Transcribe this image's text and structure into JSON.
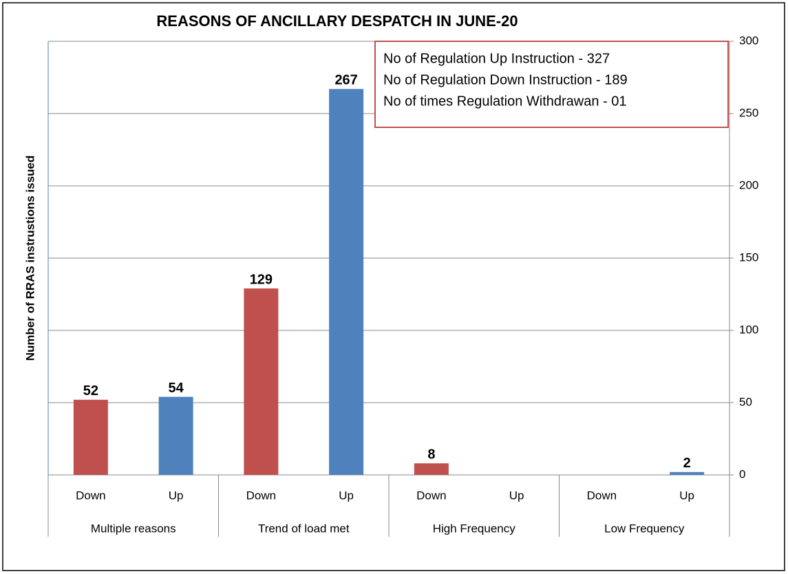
{
  "chart_data": {
    "type": "bar",
    "title": "REASONS OF ANCILLARY DESPATCH IN  JUNE-20",
    "y_label": "Number of RRAS instrustions issued",
    "annotations": [
      "No of  Regulation Up Instruction - 327",
      "No of  Regulation  Down Instruction - 189",
      "No of   times  Regulation  Withdrawan - 01"
    ],
    "categories": [
      "Down",
      "Up",
      "Down",
      "Up",
      "Down",
      "Up",
      "Down",
      "Up"
    ],
    "groups": [
      "Multiple reasons",
      "Trend of load met",
      "High Frequency",
      "Low Frequency"
    ],
    "values": [
      52,
      54,
      129,
      267,
      8,
      null,
      null,
      2
    ],
    "colors": [
      "#c0504d",
      "#4f81bd",
      "#c0504d",
      "#4f81bd",
      "#c0504d",
      "#4f81bd",
      "#c0504d",
      "#4f81bd"
    ],
    "ylim": [
      0,
      300
    ],
    "yticks": [
      0,
      50,
      100,
      150,
      200,
      250,
      300
    ],
    "grid": true
  }
}
